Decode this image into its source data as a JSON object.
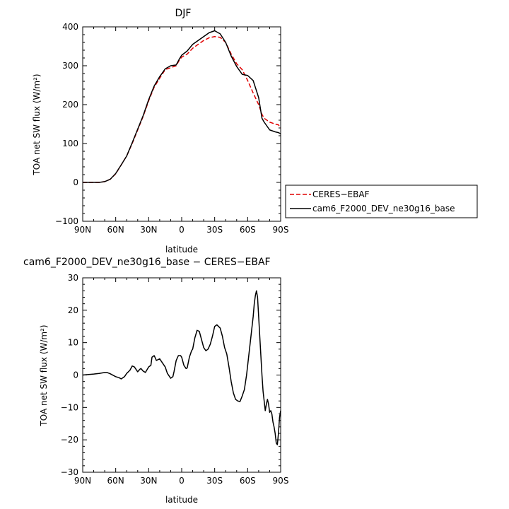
{
  "chart_data": [
    {
      "type": "line",
      "title": "DJF",
      "xlabel": "latitude",
      "ylabel": "TOA net SW flux (W/m²)",
      "xlim": [
        90,
        -90
      ],
      "ylim": [
        -100,
        400
      ],
      "x_tick_values": [
        90,
        60,
        30,
        0,
        -30,
        -60,
        -90
      ],
      "x_tick_labels": [
        "90N",
        "60N",
        "30N",
        "0",
        "30S",
        "60S",
        "90S"
      ],
      "y_tick_values": [
        -100,
        0,
        100,
        200,
        300,
        400
      ],
      "y_tick_labels": [
        "−100",
        "0",
        "100",
        "200",
        "300",
        "400"
      ],
      "legend_position": "right",
      "series": [
        {
          "name": "CERES−EBAF",
          "color": "#e00000",
          "dash": "dashed",
          "x": [
            90,
            80,
            75,
            70,
            65,
            60,
            55,
            50,
            45,
            40,
            35,
            30,
            25,
            20,
            15,
            10,
            5,
            2,
            0,
            -5,
            -10,
            -15,
            -20,
            -25,
            -30,
            -35,
            -40,
            -45,
            -50,
            -55,
            -60,
            -65,
            -70,
            -73,
            -75,
            -80,
            -85,
            -88,
            -90
          ],
          "values": [
            0,
            0,
            0,
            2,
            8,
            22,
            45,
            68,
            100,
            135,
            170,
            210,
            245,
            268,
            290,
            295,
            300,
            315,
            322,
            330,
            345,
            355,
            365,
            372,
            375,
            373,
            360,
            330,
            305,
            290,
            262,
            230,
            200,
            175,
            165,
            155,
            150,
            148,
            140
          ]
        },
        {
          "name": "cam6_F2000_DEV_ne30g16_base",
          "color": "#000000",
          "dash": "solid",
          "x": [
            90,
            80,
            75,
            70,
            65,
            60,
            55,
            50,
            45,
            40,
            35,
            30,
            25,
            20,
            15,
            10,
            5,
            2,
            0,
            -5,
            -10,
            -15,
            -20,
            -25,
            -30,
            -35,
            -40,
            -45,
            -50,
            -55,
            -60,
            -65,
            -70,
            -73,
            -75,
            -80,
            -85,
            -88,
            -90
          ],
          "values": [
            0,
            0,
            0,
            2,
            8,
            23,
            45,
            68,
            102,
            137,
            172,
            213,
            248,
            272,
            292,
            300,
            302,
            318,
            327,
            338,
            355,
            365,
            375,
            385,
            390,
            382,
            360,
            325,
            298,
            278,
            275,
            262,
            218,
            165,
            155,
            135,
            130,
            128,
            125
          ]
        }
      ]
    },
    {
      "type": "line",
      "title": "cam6_F2000_DEV_ne30g16_base − CERES−EBAF",
      "xlabel": "latitude",
      "ylabel": "TOA net SW flux (W/m²)",
      "xlim": [
        90,
        -90
      ],
      "ylim": [
        -30,
        30
      ],
      "x_tick_values": [
        90,
        60,
        30,
        0,
        -30,
        -60,
        -90
      ],
      "x_tick_labels": [
        "90N",
        "60N",
        "30N",
        "0",
        "30S",
        "60S",
        "90S"
      ],
      "y_tick_values": [
        -30,
        -20,
        -10,
        0,
        10,
        20,
        30
      ],
      "y_tick_labels": [
        "−30",
        "−20",
        "−10",
        "0",
        "10",
        "20",
        "30"
      ],
      "series": [
        {
          "color": "#000000",
          "dash": "solid",
          "x": [
            90,
            80,
            75,
            70,
            68,
            65,
            60,
            57,
            55,
            52,
            50,
            47,
            45,
            43,
            40,
            38,
            37,
            35,
            33,
            30,
            28,
            27,
            25,
            23,
            20,
            18,
            15,
            13,
            10,
            8,
            7,
            5,
            3,
            1,
            0,
            -2,
            -4,
            -5,
            -7,
            -9,
            -10,
            -12,
            -14,
            -16,
            -18,
            -20,
            -22,
            -24,
            -26,
            -28,
            -30,
            -32,
            -35,
            -37,
            -39,
            -41,
            -43,
            -45,
            -47,
            -49,
            -51,
            -53,
            -55,
            -57,
            -59,
            -61,
            -63,
            -65,
            -66,
            -67,
            -68,
            -69,
            -70,
            -71,
            -72,
            -73,
            -74,
            -75,
            -76,
            -77,
            -78,
            -79,
            -80,
            -81,
            -82,
            -83,
            -84,
            -85,
            -86,
            -87,
            -88,
            -89,
            -90
          ],
          "values": [
            0,
            0.3,
            0.5,
            0.8,
            0.8,
            0.4,
            -0.5,
            -0.8,
            -1.2,
            -0.5,
            0.5,
            1.5,
            2.8,
            2.5,
            1.0,
            1.8,
            2.0,
            1.2,
            0.8,
            2.5,
            3.0,
            5.5,
            6.0,
            4.5,
            5.0,
            4.0,
            2.5,
            0.5,
            -1.0,
            -0.5,
            1.0,
            4.5,
            6.0,
            6.0,
            5.5,
            3.0,
            2.0,
            2.2,
            5.5,
            7.5,
            8.0,
            11.5,
            13.8,
            13.5,
            11.0,
            8.5,
            7.5,
            8.0,
            9.5,
            12.0,
            15.0,
            15.5,
            14.5,
            12.0,
            8.5,
            6.5,
            2.5,
            -2.0,
            -5.5,
            -7.5,
            -8.0,
            -8.2,
            -6.5,
            -4.5,
            0.0,
            6.0,
            12.0,
            18.0,
            22.0,
            24.5,
            26.0,
            24.0,
            18.0,
            12.0,
            6.0,
            0.0,
            -5.0,
            -8.0,
            -11.0,
            -9.0,
            -7.5,
            -9.0,
            -11.5,
            -11.0,
            -12.0,
            -14.5,
            -16.0,
            -18.0,
            -21.0,
            -21.5,
            -18.0,
            -13.0,
            -11.0
          ]
        }
      ]
    }
  ]
}
